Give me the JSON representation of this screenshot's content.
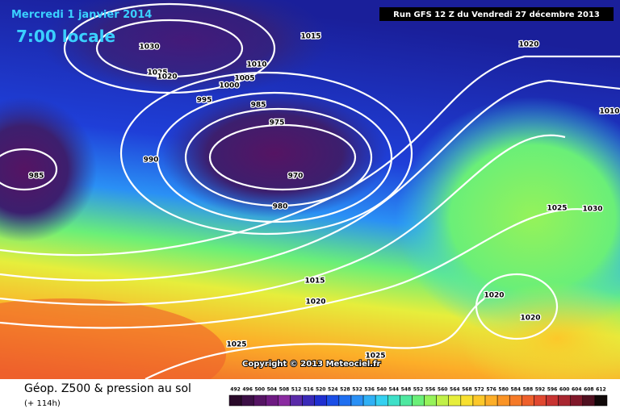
{
  "header": {
    "date": "Mercredi 1 janvier 2014",
    "time": "7:00 locale",
    "run": "Run GFS 12 Z du Vendredi 27 décembre 2013"
  },
  "map": {
    "isobar_labels": [
      "1030",
      "1025",
      "1020",
      "1015",
      "1010",
      "1005",
      "1000",
      "995",
      "985",
      "975",
      "970",
      "990",
      "985",
      "980",
      "1015",
      "1020",
      "1025",
      "1025",
      "1020",
      "1010",
      "1025",
      "1030",
      "1020",
      "1020"
    ],
    "copyright": "Copyright © 2013 Meteociel.fr"
  },
  "footer": {
    "title": "Géop. Z500 & pression au sol",
    "lead": "(+ 114h)"
  },
  "colorbar": {
    "labels": [
      "492",
      "496",
      "500",
      "504",
      "508",
      "512",
      "516",
      "520",
      "524",
      "528",
      "532",
      "536",
      "540",
      "544",
      "548",
      "552",
      "556",
      "560",
      "564",
      "568",
      "572",
      "576",
      "580",
      "584",
      "588",
      "592",
      "596",
      "600",
      "604",
      "608",
      "612"
    ],
    "colors": [
      "#2a0a2a",
      "#3c0f46",
      "#551463",
      "#6e1a82",
      "#8a2aa0",
      "#5a2aa8",
      "#3a2ab8",
      "#1f2fd0",
      "#1b4ee6",
      "#1f6ff0",
      "#2a90f5",
      "#30b0f5",
      "#35d0f0",
      "#3ee0c8",
      "#4ee8a0",
      "#6aef78",
      "#95f25a",
      "#c0f048",
      "#e6ee3c",
      "#f8e030",
      "#fcc82a",
      "#fcae28",
      "#fa9426",
      "#f57a28",
      "#ee602c",
      "#e04830",
      "#c83432",
      "#a82630",
      "#80182a",
      "#501020",
      "#100808"
    ]
  }
}
